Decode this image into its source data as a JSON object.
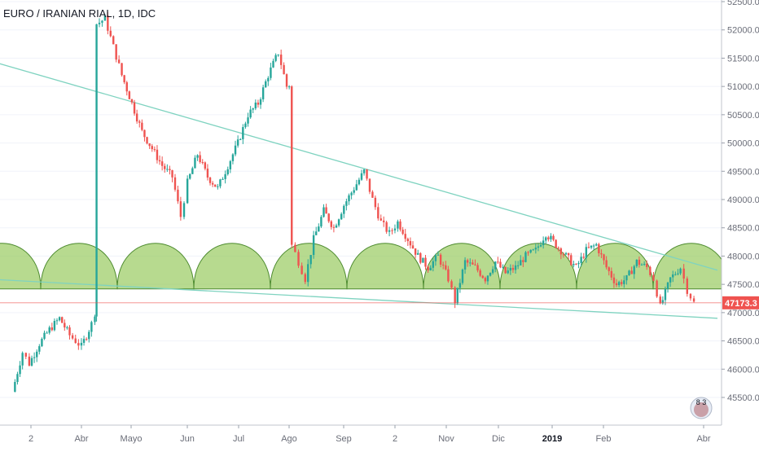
{
  "header": {
    "title": "EURO / IRANIAN RIAL, 1D, IDC"
  },
  "price_axis": {
    "ticks": [
      "52500.0",
      "52000.0",
      "51500.0",
      "51000.0",
      "50500.0",
      "50000.0",
      "49500.0",
      "49000.0",
      "48500.0",
      "48000.0",
      "47500.0",
      "47000.0",
      "46500.0",
      "46000.0",
      "45500.0"
    ],
    "last_price": "47173.3",
    "last_price_color": "#ef5350"
  },
  "time_axis": {
    "labels": [
      "2",
      "Abr",
      "Mayo",
      "Jun",
      "Jul",
      "Ago",
      "Sep",
      "2",
      "Nov",
      "Dic",
      "2019",
      "Feb",
      "Abr"
    ],
    "bold": [
      "2019"
    ]
  },
  "logo": {
    "text": "8 3",
    "icon": "broker-logo-icon"
  },
  "colors": {
    "up": "#26a69a",
    "down": "#ef5350",
    "trendline": "#7fd3c0",
    "arc_fill": "#8bc34a",
    "arc_stroke": "#4c8a2e",
    "grid": "#f0f3fa"
  },
  "chart_data": {
    "type": "candlestick",
    "title": "EURO / IRANIAN RIAL, 1D, IDC",
    "ylim": [
      45200,
      52600
    ],
    "y_ticks": [
      45500,
      46000,
      46500,
      47000,
      47500,
      48000,
      48500,
      49000,
      49500,
      50000,
      50500,
      51000,
      51500,
      52000,
      52500
    ],
    "last_price": 47173.3,
    "series_close_path": [
      {
        "d": "2018-02-20",
        "c": 45600
      },
      {
        "d": "2018-02-26",
        "c": 46300
      },
      {
        "d": "2018-03-02",
        "c": 46100
      },
      {
        "d": "2018-03-08",
        "c": 46450
      },
      {
        "d": "2018-03-14",
        "c": 46700
      },
      {
        "d": "2018-03-20",
        "c": 46900
      },
      {
        "d": "2018-03-26",
        "c": 46600
      },
      {
        "d": "2018-04-02",
        "c": 46400
      },
      {
        "d": "2018-04-08",
        "c": 46800
      },
      {
        "d": "2018-04-10",
        "c": 47000
      },
      {
        "d": "2018-04-11",
        "c": 52100
      },
      {
        "d": "2018-04-16",
        "c": 52200
      },
      {
        "d": "2018-04-21",
        "c": 51700
      },
      {
        "d": "2018-04-26",
        "c": 51200
      },
      {
        "d": "2018-05-02",
        "c": 50700
      },
      {
        "d": "2018-05-08",
        "c": 50200
      },
      {
        "d": "2018-05-14",
        "c": 49900
      },
      {
        "d": "2018-05-20",
        "c": 49600
      },
      {
        "d": "2018-05-26",
        "c": 49400
      },
      {
        "d": "2018-05-31",
        "c": 48700
      },
      {
        "d": "2018-06-04",
        "c": 49300
      },
      {
        "d": "2018-06-10",
        "c": 49800
      },
      {
        "d": "2018-06-16",
        "c": 49400
      },
      {
        "d": "2018-06-22",
        "c": 49200
      },
      {
        "d": "2018-06-28",
        "c": 49600
      },
      {
        "d": "2018-07-04",
        "c": 50000
      },
      {
        "d": "2018-07-10",
        "c": 50500
      },
      {
        "d": "2018-07-16",
        "c": 50700
      },
      {
        "d": "2018-07-22",
        "c": 51200
      },
      {
        "d": "2018-07-28",
        "c": 51600
      },
      {
        "d": "2018-08-02",
        "c": 51000
      },
      {
        "d": "2018-08-05",
        "c": 48200
      },
      {
        "d": "2018-08-09",
        "c": 47900
      },
      {
        "d": "2018-08-13",
        "c": 47600
      },
      {
        "d": "2018-08-18",
        "c": 48300
      },
      {
        "d": "2018-08-24",
        "c": 48800
      },
      {
        "d": "2018-08-30",
        "c": 48500
      },
      {
        "d": "2018-09-05",
        "c": 48900
      },
      {
        "d": "2018-09-11",
        "c": 49200
      },
      {
        "d": "2018-09-17",
        "c": 49500
      },
      {
        "d": "2018-09-22",
        "c": 49000
      },
      {
        "d": "2018-09-27",
        "c": 48600
      },
      {
        "d": "2018-10-02",
        "c": 48400
      },
      {
        "d": "2018-10-07",
        "c": 48600
      },
      {
        "d": "2018-10-13",
        "c": 48300
      },
      {
        "d": "2018-10-19",
        "c": 48000
      },
      {
        "d": "2018-10-25",
        "c": 47800
      },
      {
        "d": "2018-10-31",
        "c": 48000
      },
      {
        "d": "2018-11-06",
        "c": 47600
      },
      {
        "d": "2018-11-10",
        "c": 47200
      },
      {
        "d": "2018-11-16",
        "c": 47900
      },
      {
        "d": "2018-11-22",
        "c": 47800
      },
      {
        "d": "2018-11-28",
        "c": 47600
      },
      {
        "d": "2018-12-04",
        "c": 47900
      },
      {
        "d": "2018-12-10",
        "c": 47700
      },
      {
        "d": "2018-12-16",
        "c": 47800
      },
      {
        "d": "2018-12-22",
        "c": 48000
      },
      {
        "d": "2018-12-28",
        "c": 48100
      },
      {
        "d": "2019-01-03",
        "c": 48400
      },
      {
        "d": "2019-01-09",
        "c": 48200
      },
      {
        "d": "2019-01-15",
        "c": 48000
      },
      {
        "d": "2019-01-21",
        "c": 47800
      },
      {
        "d": "2019-01-27",
        "c": 48100
      },
      {
        "d": "2019-02-02",
        "c": 48200
      },
      {
        "d": "2019-02-08",
        "c": 47800
      },
      {
        "d": "2019-02-14",
        "c": 47500
      },
      {
        "d": "2019-02-20",
        "c": 47600
      },
      {
        "d": "2019-02-26",
        "c": 47900
      },
      {
        "d": "2019-03-04",
        "c": 47800
      },
      {
        "d": "2019-03-08",
        "c": 47600
      },
      {
        "d": "2019-03-12",
        "c": 47100
      },
      {
        "d": "2019-03-18",
        "c": 47600
      },
      {
        "d": "2019-03-24",
        "c": 47800
      },
      {
        "d": "2019-03-28",
        "c": 47400
      },
      {
        "d": "2019-04-01",
        "c": 47173.3
      }
    ],
    "trendlines": [
      {
        "p1": {
          "d": "2018-02-01",
          "v": 51500
        },
        "p2": {
          "d": "2019-04-15",
          "v": 47750
        }
      },
      {
        "p1": {
          "d": "2018-02-01",
          "v": 47600
        },
        "p2": {
          "d": "2019-04-15",
          "v": 46900
        }
      }
    ],
    "arcs": {
      "base": 47420,
      "top": 48380,
      "count": 10
    }
  }
}
